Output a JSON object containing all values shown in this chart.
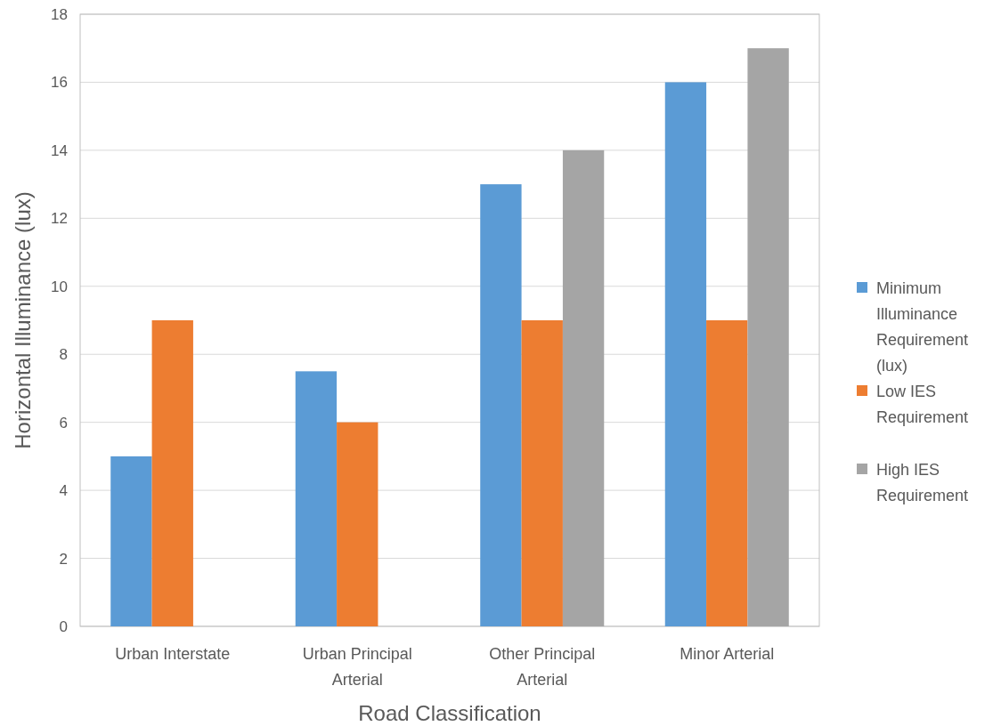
{
  "chart_data": {
    "type": "bar",
    "xlabel": "Road Classification",
    "ylabel": "Horizontal Illuminance (lux)",
    "categories": [
      "Urban Interstate",
      "Urban Principal Arterial",
      "Other Principal Arterial",
      "Minor Arterial"
    ],
    "series": [
      {
        "name": "Minimum Illuminance Requirement (lux)",
        "color": "#5b9bd5",
        "values": [
          5,
          7.5,
          13,
          16
        ]
      },
      {
        "name": "Low IES Requirement",
        "color": "#ed7d31",
        "values": [
          9,
          6,
          9,
          9
        ]
      },
      {
        "name": "High IES Requirement",
        "color": "#a5a5a5",
        "values": [
          null,
          null,
          14,
          17
        ]
      }
    ],
    "ylim": [
      0,
      18
    ],
    "yticks": [
      0,
      2,
      4,
      6,
      8,
      10,
      12,
      14,
      16,
      18
    ],
    "grid": "y",
    "legend": "right"
  }
}
